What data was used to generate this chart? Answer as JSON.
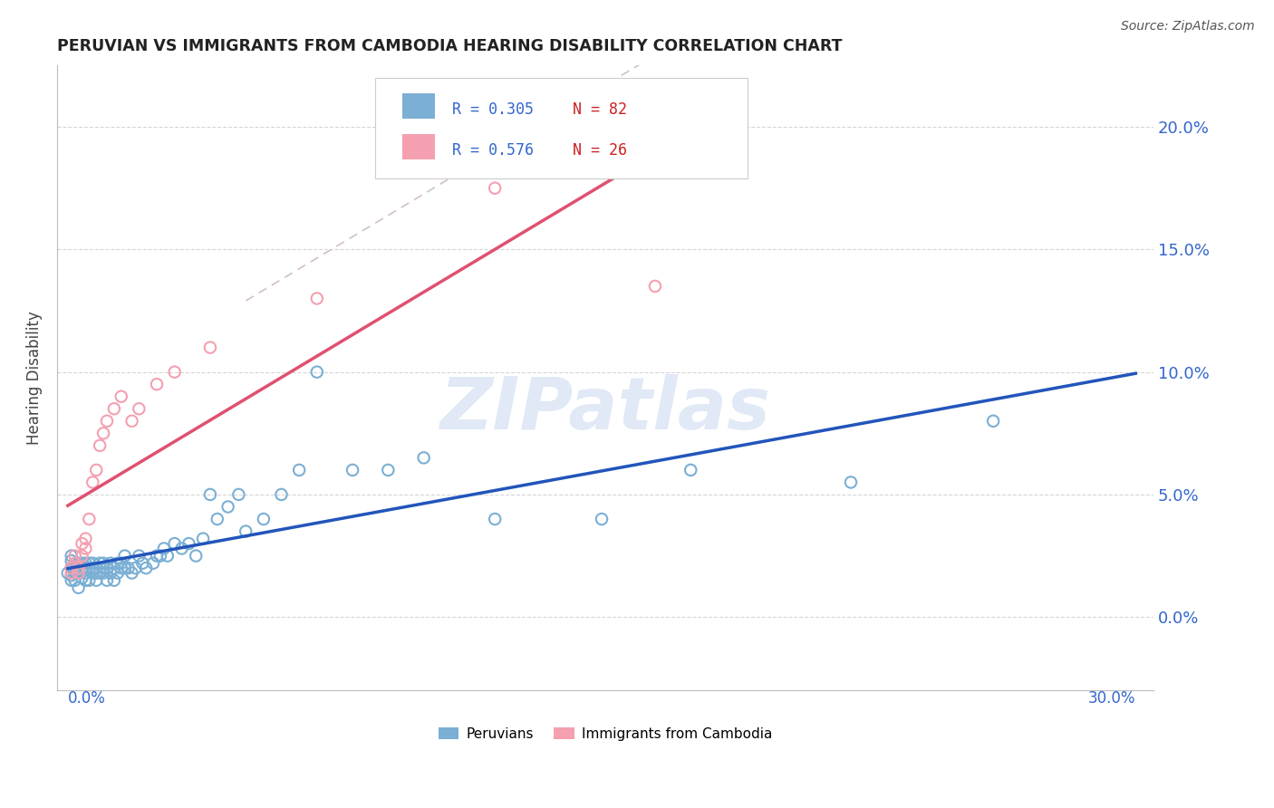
{
  "title": "PERUVIAN VS IMMIGRANTS FROM CAMBODIA HEARING DISABILITY CORRELATION CHART",
  "source": "Source: ZipAtlas.com",
  "ylabel": "Hearing Disability",
  "xlim": [
    0.0,
    0.3
  ],
  "ylim": [
    -0.025,
    0.22
  ],
  "ytick_values": [
    0.0,
    0.05,
    0.1,
    0.15,
    0.2
  ],
  "legend_R1": "R = 0.305",
  "legend_N1": "N = 82",
  "legend_R2": "R = 0.576",
  "legend_N2": "N = 26",
  "blue_scatter_color": "#7BAFD4",
  "pink_scatter_color": "#F4A0B0",
  "blue_line_color": "#2255BB",
  "pink_line_color": "#E05070",
  "ci_line_color": "#CCBBBB",
  "watermark_color": "#C8D8EE",
  "title_color": "#222222",
  "source_color": "#555555",
  "axis_label_color": "#444444",
  "tick_label_color": "#3366CC",
  "grid_color": "#CCCCCC"
}
